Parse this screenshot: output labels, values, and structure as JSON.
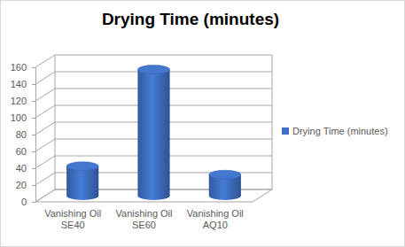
{
  "chart_data": {
    "type": "bar",
    "title": "Drying Time (minutes)",
    "categories": [
      "Vanishing Oil SE40",
      "Vanishing Oil SE60",
      "Vanishing Oil AQ10"
    ],
    "series": [
      {
        "name": "Drying Time (minutes)",
        "color": "#3f6fc2",
        "values": [
          35,
          150,
          25
        ]
      }
    ],
    "ylim": [
      0,
      160
    ],
    "yticks": [
      0,
      20,
      40,
      60,
      80,
      100,
      120,
      140,
      160
    ],
    "grid": true,
    "legend": "right"
  }
}
